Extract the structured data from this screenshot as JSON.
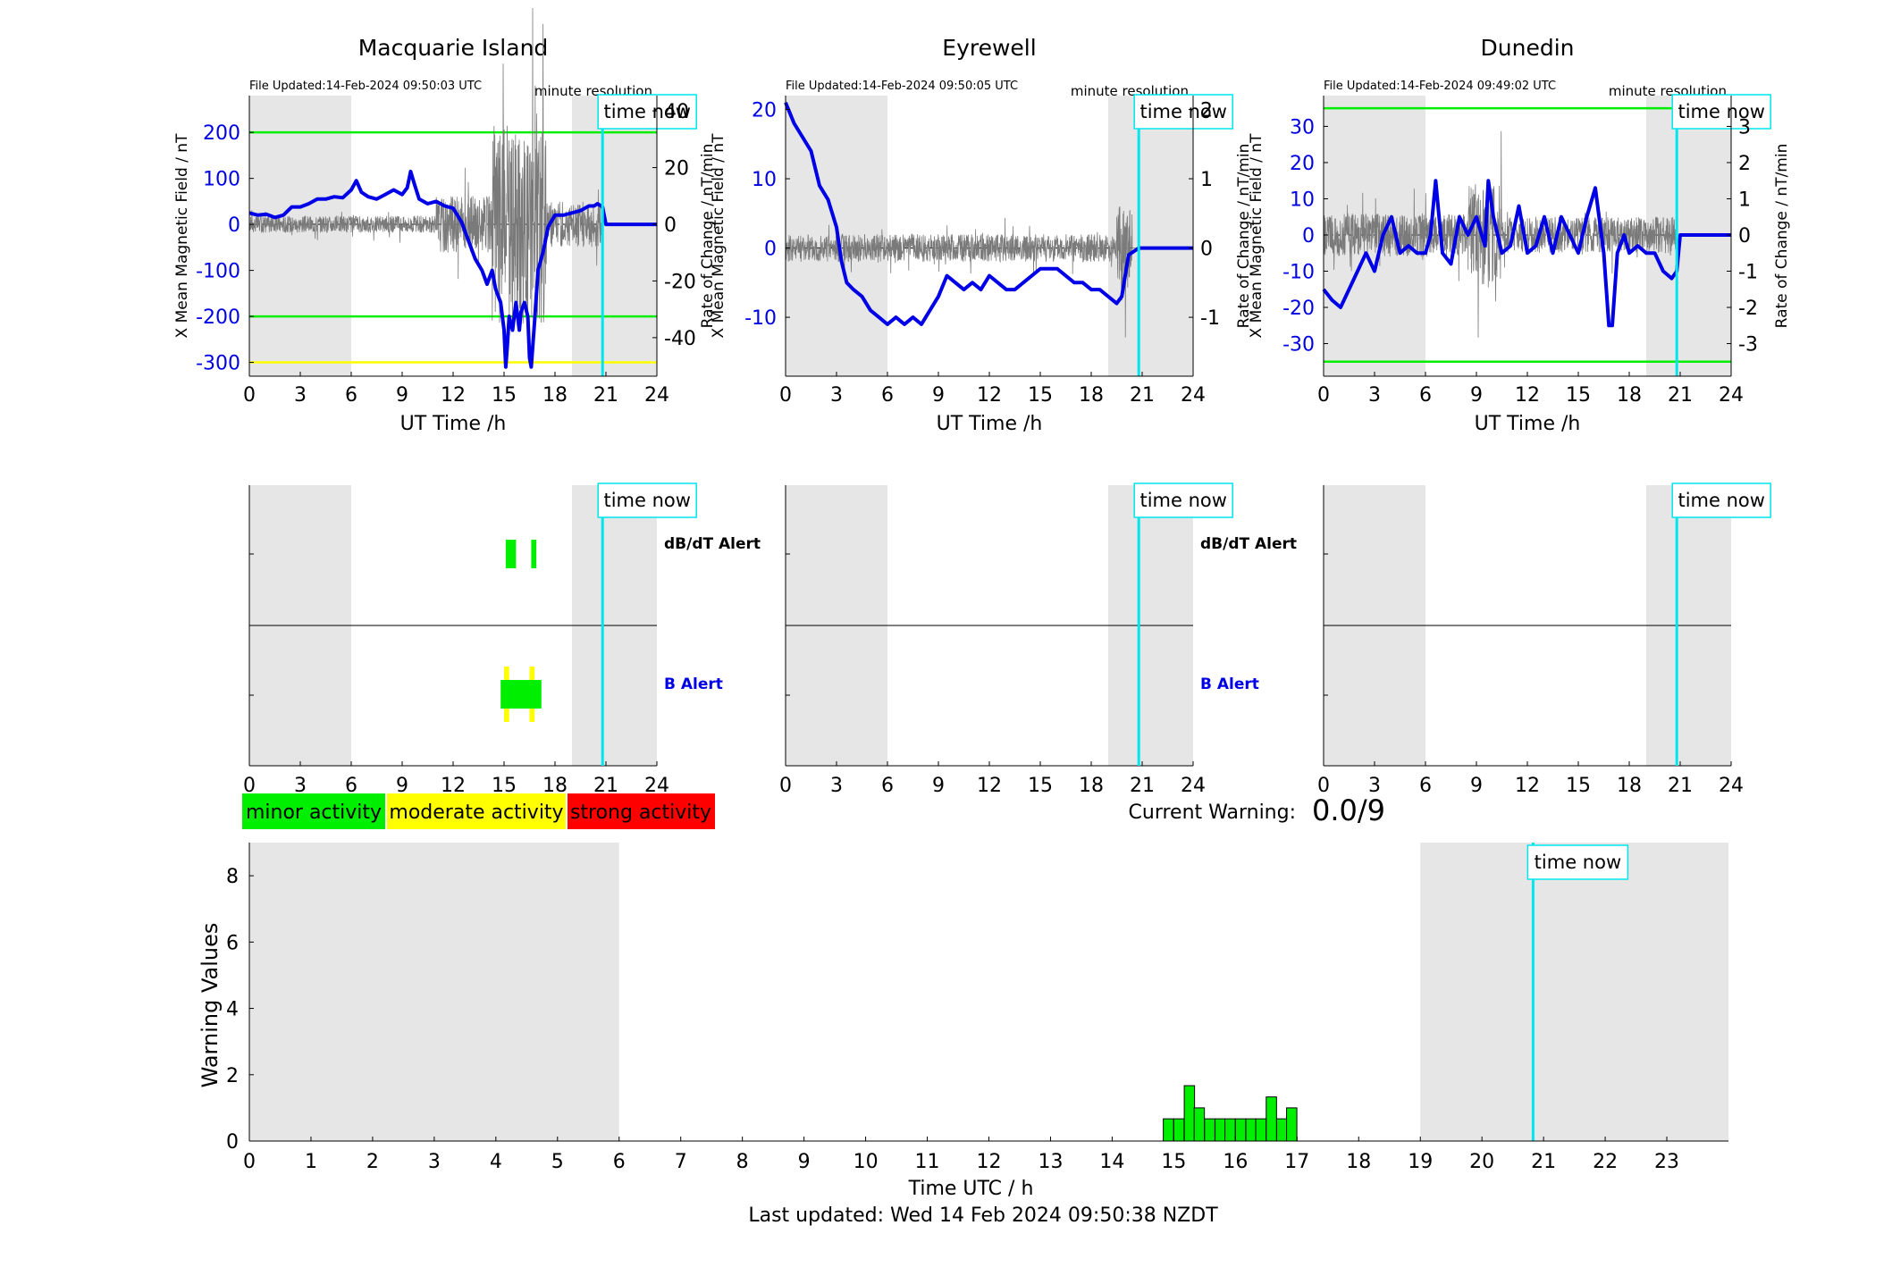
{
  "colors": {
    "blue": "#0000e6",
    "green": "#00ee00",
    "yellow": "#ffff00",
    "red": "#ff0000",
    "cyan": "#00e5ee",
    "night": "#e6e6e6",
    "noise": "#7a7a7a"
  },
  "legend": [
    "minor activity",
    "moderate activity",
    "strong activity"
  ],
  "current_warning": {
    "label": "Current Warning:",
    "value": "0.0/9"
  },
  "last_updated": "Last updated: Wed 14 Feb 2024 09:50:38 NZDT",
  "time_now_label": "time now",
  "alert_labels": {
    "dbdt": "dB/dT Alert",
    "b": "B Alert"
  },
  "chart_data": [
    {
      "type": "line",
      "title": "Macquarie Island",
      "file_updated": "File Updated:14-Feb-2024 09:50:03 UTC",
      "resolution": "minute resolution",
      "xlabel": "UT Time /h",
      "ylabel_left": "X Mean Magnetic Field / nT",
      "ylabel_right": "Rate of Change / nT/min",
      "xlim": [
        0,
        24
      ],
      "ylim_left": [
        -330,
        280
      ],
      "ylim_right": [
        -53.6,
        45.4
      ],
      "xticks": [
        0,
        3,
        6,
        9,
        12,
        15,
        18,
        21,
        24
      ],
      "yticks_left": [
        -300,
        -200,
        -100,
        0,
        100,
        200
      ],
      "yticks_right": [
        -40,
        -20,
        0,
        20,
        40
      ],
      "night_spans": [
        [
          0,
          6
        ],
        [
          19,
          24
        ]
      ],
      "time_now": 20.8,
      "thresholds": [
        {
          "y": 200,
          "color": "green"
        },
        {
          "y": -200,
          "color": "green"
        },
        {
          "y": -300,
          "color": "yellow"
        }
      ],
      "x_field": [
        0,
        0.5,
        1,
        1.5,
        2,
        2.5,
        3,
        3.5,
        4,
        4.5,
        5,
        5.5,
        6,
        6.3,
        6.6,
        7,
        7.5,
        8,
        8.5,
        9,
        9.3,
        9.5,
        9.7,
        10,
        10.5,
        11,
        11.5,
        12,
        12.5,
        13,
        13.3,
        13.7,
        14,
        14.3,
        14.5,
        14.8,
        15,
        15.1,
        15.2,
        15.3,
        15.5,
        15.7,
        15.9,
        16,
        16.2,
        16.4,
        16.5,
        16.6,
        16.7,
        16.8,
        17,
        17.3,
        17.6,
        18,
        18.5,
        19,
        19.5,
        20,
        20.3,
        20.5,
        20.8,
        21,
        22,
        23,
        24
      ],
      "y_field": [
        25,
        20,
        22,
        15,
        20,
        38,
        38,
        45,
        55,
        55,
        60,
        58,
        75,
        95,
        70,
        60,
        55,
        65,
        75,
        65,
        80,
        115,
        90,
        55,
        45,
        50,
        40,
        35,
        5,
        -45,
        -75,
        -100,
        -130,
        -100,
        -140,
        -170,
        -230,
        -310,
        -260,
        -200,
        -230,
        -170,
        -230,
        -190,
        -170,
        -200,
        -290,
        -310,
        -260,
        -210,
        -100,
        -60,
        -5,
        20,
        20,
        25,
        30,
        40,
        40,
        45,
        38,
        0,
        0,
        0,
        0
      ],
      "noise": [
        {
          "from": 0,
          "to": 11,
          "amp": 3
        },
        {
          "from": 11,
          "to": 14.3,
          "amp": 10
        },
        {
          "from": 14.3,
          "to": 17.5,
          "amp": 35
        },
        {
          "from": 17.5,
          "to": 20.8,
          "amp": 8
        }
      ],
      "alerts": {
        "dbdt": [
          [
            15.1,
            15.7
          ],
          [
            16.6,
            16.9
          ]
        ],
        "b": [
          {
            "range": [
              14.8,
              17.2
            ],
            "edges": [
              [
                15.0,
                15.3
              ],
              [
                16.5,
                16.8
              ]
            ]
          }
        ]
      }
    },
    {
      "type": "line",
      "title": "Eyrewell",
      "file_updated": "File Updated:14-Feb-2024 09:50:05 UTC",
      "resolution": "minute resolution",
      "xlabel": "UT Time /h",
      "ylabel_left": "X Mean Magnetic Field / nT",
      "ylabel_right": "Rate of Change / nT/min",
      "xlim": [
        0,
        24
      ],
      "ylim_left": [
        -18.5,
        22
      ],
      "ylim_right": [
        -1.85,
        2.2
      ],
      "xticks": [
        0,
        3,
        6,
        9,
        12,
        15,
        18,
        21,
        24
      ],
      "yticks_left": [
        -10,
        0,
        10,
        20
      ],
      "yticks_right": [
        -1,
        0,
        1,
        2
      ],
      "night_spans": [
        [
          0,
          6
        ],
        [
          19,
          24
        ]
      ],
      "time_now": 20.8,
      "thresholds": [],
      "x_field": [
        0,
        0.5,
        1,
        1.5,
        2,
        2.5,
        3,
        3.3,
        3.6,
        4,
        4.5,
        5,
        5.5,
        6,
        6.5,
        7,
        7.5,
        8,
        8.5,
        9,
        9.5,
        10,
        10.5,
        11,
        11.5,
        12,
        12.5,
        13,
        13.5,
        14,
        14.5,
        15,
        15.5,
        16,
        16.5,
        17,
        17.5,
        18,
        18.5,
        19,
        19.5,
        19.8,
        20.2,
        20.8,
        22,
        24
      ],
      "y_field": [
        21,
        18,
        16,
        14,
        9,
        7,
        3,
        -2,
        -5,
        -6,
        -7,
        -9,
        -10,
        -11,
        -10,
        -11,
        -10,
        -11,
        -9,
        -7,
        -4,
        -5,
        -6,
        -5,
        -6,
        -4,
        -5,
        -6,
        -6,
        -5,
        -4,
        -3,
        -3,
        -3,
        -4,
        -5,
        -5,
        -6,
        -6,
        -7,
        -8,
        -7,
        -1,
        0,
        0,
        0
      ],
      "noise": [
        {
          "from": 0,
          "to": 20.2,
          "amp": 0.2
        },
        {
          "from": 19.5,
          "to": 20.4,
          "amp": 0.6
        }
      ],
      "alerts": {
        "dbdt": [],
        "b": []
      }
    },
    {
      "type": "line",
      "title": "Dunedin",
      "file_updated": "File Updated:14-Feb-2024 09:49:02 UTC",
      "resolution": "minute resolution",
      "xlabel": "UT Time /h",
      "ylabel_left": "X Mean Magnetic Field / nT",
      "ylabel_right": "Rate of Change / nT/min",
      "xlim": [
        0,
        24
      ],
      "ylim_left": [
        -39,
        38.5
      ],
      "ylim_right": [
        -3.9,
        3.85
      ],
      "xticks": [
        0,
        3,
        6,
        9,
        12,
        15,
        18,
        21,
        24
      ],
      "yticks_left": [
        -30,
        -20,
        -10,
        0,
        10,
        20,
        30
      ],
      "yticks_right": [
        -3,
        -2,
        -1,
        0,
        1,
        2,
        3
      ],
      "night_spans": [
        [
          0,
          6
        ],
        [
          19,
          24
        ]
      ],
      "time_now": 20.8,
      "thresholds": [
        {
          "y": 35,
          "color": "green"
        },
        {
          "y": -35,
          "color": "green"
        }
      ],
      "x_field": [
        0,
        0.5,
        1,
        1.5,
        2,
        2.5,
        3,
        3.5,
        4,
        4.5,
        5,
        5.5,
        6,
        6.3,
        6.6,
        7,
        7.5,
        8,
        8.5,
        9,
        9.5,
        9.7,
        10,
        10.5,
        11,
        11.5,
        12,
        12.5,
        13,
        13.5,
        14,
        14.5,
        15,
        15.5,
        16,
        16.5,
        16.8,
        17,
        17.3,
        17.7,
        18,
        18.5,
        19,
        19.5,
        20,
        20.5,
        20.8,
        21,
        22,
        24
      ],
      "y_field": [
        -15,
        -18,
        -20,
        -15,
        -10,
        -5,
        -10,
        0,
        5,
        -5,
        -3,
        -5,
        -5,
        0,
        15,
        -5,
        -8,
        5,
        0,
        5,
        -3,
        15,
        5,
        -5,
        -3,
        8,
        -5,
        -3,
        5,
        -5,
        5,
        0,
        -5,
        5,
        13,
        -5,
        -25,
        -25,
        -5,
        0,
        -5,
        -3,
        -5,
        -5,
        -10,
        -12,
        -10,
        0,
        0,
        0
      ],
      "noise": [
        {
          "from": 0,
          "to": 8.5,
          "amp": 0.6
        },
        {
          "from": 8.5,
          "to": 10.5,
          "amp": 1.4
        },
        {
          "from": 10.5,
          "to": 20.8,
          "amp": 0.5
        }
      ],
      "alerts": {
        "dbdt": [],
        "b": []
      }
    },
    {
      "type": "bar",
      "xlabel": "Time UTC / h",
      "ylabel": "Warning Values",
      "xlim": [
        0,
        24
      ],
      "ylim": [
        0,
        9
      ],
      "xticks": [
        0,
        1,
        2,
        3,
        4,
        5,
        6,
        7,
        8,
        9,
        10,
        11,
        12,
        13,
        14,
        15,
        16,
        17,
        18,
        19,
        20,
        21,
        22,
        23
      ],
      "yticks": [
        0,
        2,
        4,
        6,
        8
      ],
      "night_spans": [
        [
          0,
          6
        ],
        [
          19,
          24
        ]
      ],
      "time_now": 20.83,
      "bar_width": 0.167,
      "x_start": [
        14.83,
        15.0,
        15.17,
        15.33,
        15.5,
        15.67,
        15.83,
        16.0,
        16.17,
        16.33,
        16.5,
        16.67,
        16.83
      ],
      "values": [
        0.67,
        0.67,
        1.67,
        1.0,
        0.67,
        0.67,
        0.67,
        0.67,
        0.67,
        0.67,
        1.33,
        0.67,
        1.0
      ]
    }
  ]
}
